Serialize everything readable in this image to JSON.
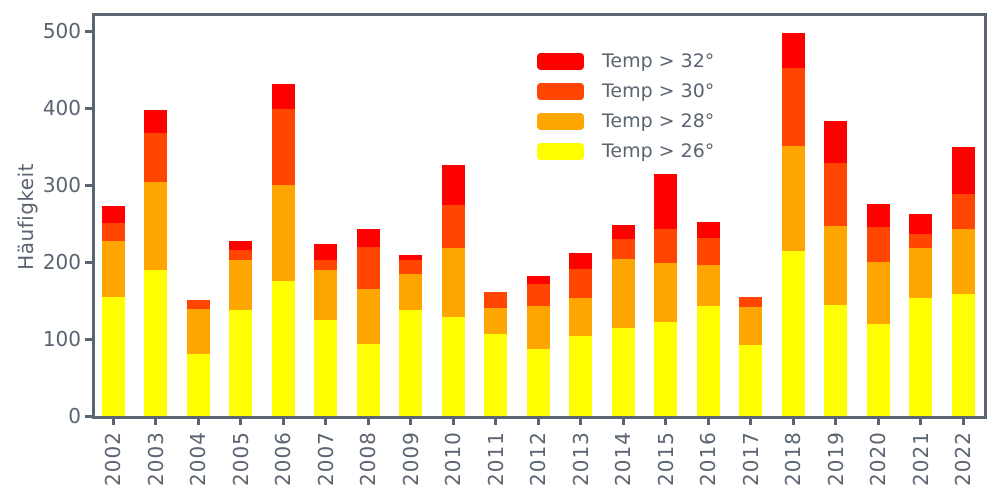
{
  "figure": {
    "background": "#ffffff",
    "axis_color": "#5a6472"
  },
  "chart_data": {
    "type": "bar",
    "stacked": true,
    "title": "",
    "xlabel": "",
    "ylabel": "Häufigkeit",
    "categories": [
      "2002",
      "2003",
      "2004",
      "2005",
      "2006",
      "2007",
      "2008",
      "2009",
      "2010",
      "2011",
      "2012",
      "2013",
      "2014",
      "2015",
      "2016",
      "2017",
      "2018",
      "2019",
      "2020",
      "2021",
      "2022"
    ],
    "series": [
      {
        "name": "Temp > 26°",
        "color": "#ffff00",
        "values": [
          155,
          190,
          80,
          138,
          176,
          125,
          94,
          138,
          129,
          107,
          87,
          104,
          115,
          122,
          143,
          92,
          214,
          144,
          120,
          153,
          158
        ]
      },
      {
        "name": "Temp > 28°",
        "color": "#ffa500",
        "values": [
          72,
          114,
          59,
          65,
          124,
          65,
          71,
          46,
          90,
          34,
          56,
          50,
          89,
          77,
          53,
          50,
          137,
          103,
          80,
          65,
          85
        ]
      },
      {
        "name": "Temp > 30°",
        "color": "#ff4500",
        "values": [
          24,
          64,
          12,
          13,
          99,
          13,
          55,
          19,
          55,
          20,
          28,
          37,
          26,
          44,
          36,
          13,
          102,
          82,
          46,
          18,
          46
        ]
      },
      {
        "name": "Temp > 32°",
        "color": "#ff0000",
        "values": [
          22,
          30,
          0,
          11,
          33,
          20,
          23,
          6,
          52,
          0,
          11,
          21,
          18,
          72,
          20,
          0,
          45,
          54,
          30,
          26,
          61
        ]
      }
    ],
    "yticks": [
      0,
      100,
      200,
      300,
      400,
      500
    ],
    "ylim": [
      0,
      520
    ],
    "grid": false,
    "legend_position": "upper center, no frame, listed top-to-bottom 32/30/28/26"
  }
}
